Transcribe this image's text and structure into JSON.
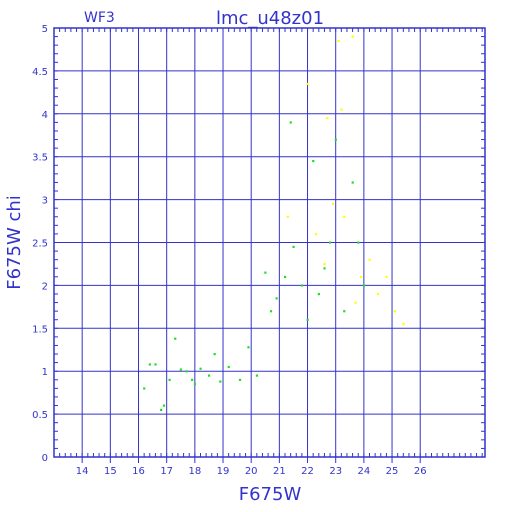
{
  "chart_data": {
    "type": "scatter",
    "title": "lmc_u48z01",
    "subtitle": "WF3",
    "xlabel": "F675W",
    "ylabel": "F675W  chi",
    "xlim": [
      13,
      28.3
    ],
    "ylim": [
      0,
      5
    ],
    "x_ticks": [
      "14",
      "15",
      "16",
      "17",
      "18",
      "19",
      "20",
      "21",
      "22",
      "23",
      "24",
      "25",
      "26"
    ],
    "y_ticks": [
      "0",
      "0.5",
      "1",
      "1.5",
      "2",
      "2.5",
      "3",
      "3.5",
      "4",
      "4.5",
      "5"
    ],
    "grid": true,
    "colors": {
      "frame": "#3333cc",
      "grid": "#3333cc",
      "green": "#22dd22",
      "yellow": "#ffff00"
    },
    "series": [
      {
        "color": "green",
        "values": [
          [
            16.2,
            0.8
          ],
          [
            16.4,
            1.08
          ],
          [
            16.6,
            1.08
          ],
          [
            16.8,
            0.55
          ],
          [
            16.9,
            0.6
          ],
          [
            17.1,
            0.9
          ],
          [
            17.3,
            1.38
          ],
          [
            17.5,
            1.02
          ],
          [
            17.7,
            1.0
          ],
          [
            17.9,
            0.9
          ],
          [
            18.0,
            0.85
          ],
          [
            18.2,
            1.03
          ],
          [
            18.5,
            0.95
          ],
          [
            18.7,
            1.2
          ],
          [
            18.9,
            0.88
          ],
          [
            19.2,
            1.05
          ],
          [
            19.6,
            0.9
          ],
          [
            19.9,
            1.28
          ],
          [
            20.2,
            0.95
          ],
          [
            20.5,
            2.15
          ],
          [
            20.7,
            1.7
          ],
          [
            20.9,
            1.85
          ],
          [
            21.2,
            2.1
          ],
          [
            21.4,
            3.9
          ],
          [
            21.5,
            2.45
          ],
          [
            21.8,
            2.0
          ],
          [
            22.0,
            1.6
          ],
          [
            22.2,
            3.45
          ],
          [
            22.4,
            1.9
          ],
          [
            22.6,
            2.2
          ],
          [
            22.8,
            2.5
          ],
          [
            23.0,
            3.7
          ],
          [
            23.3,
            1.7
          ],
          [
            23.6,
            3.2
          ],
          [
            23.8,
            2.5
          ],
          [
            24.0,
            2.0
          ]
        ]
      },
      {
        "color": "yellow",
        "values": [
          [
            21.3,
            2.8
          ],
          [
            22.0,
            4.35
          ],
          [
            22.3,
            2.6
          ],
          [
            22.7,
            3.95
          ],
          [
            22.9,
            2.95
          ],
          [
            23.1,
            4.85
          ],
          [
            23.2,
            4.05
          ],
          [
            23.3,
            2.8
          ],
          [
            23.6,
            4.9
          ],
          [
            23.9,
            2.1
          ],
          [
            24.2,
            2.3
          ],
          [
            24.5,
            1.9
          ],
          [
            24.8,
            2.1
          ],
          [
            25.1,
            1.7
          ],
          [
            25.4,
            1.55
          ],
          [
            22.6,
            2.25
          ],
          [
            23.7,
            1.8
          ]
        ]
      }
    ]
  }
}
